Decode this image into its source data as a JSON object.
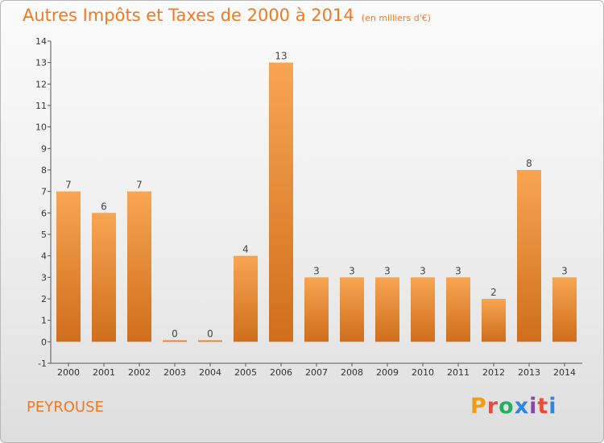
{
  "title": "Autres Impôts et Taxes de 2000 à 2014",
  "unit": "(en milliers d'€)",
  "location": "PEYROUSE",
  "logo": "Proxiti",
  "colors": {
    "accent": "#f07a22",
    "bar_light": "#f8a552",
    "bar_dark": "#cf6e1c",
    "logo_letters": [
      "#f39c12",
      "#e74c3c",
      "#27ae60",
      "#2e86de",
      "#8e44ad",
      "#e74c3c",
      "#2e86de"
    ]
  },
  "chart_data": {
    "type": "bar",
    "title": "Autres Impôts et Taxes de 2000 à 2014",
    "subtitle": "(en milliers d'€)",
    "categories": [
      "2000",
      "2001",
      "2002",
      "2003",
      "2004",
      "2005",
      "2006",
      "2007",
      "2008",
      "2009",
      "2010",
      "2011",
      "2012",
      "2013",
      "2014"
    ],
    "values": [
      7,
      6,
      7,
      0,
      0,
      4,
      13,
      3,
      3,
      3,
      3,
      3,
      2,
      8,
      3
    ],
    "ylim": [
      -1,
      14
    ],
    "yticks": [
      "-1",
      "0",
      "1",
      "2",
      "3",
      "4",
      "5",
      "6",
      "7",
      "8",
      "9",
      "10",
      "11",
      "12",
      "13",
      "14"
    ],
    "grid": false,
    "data_labels": true
  }
}
